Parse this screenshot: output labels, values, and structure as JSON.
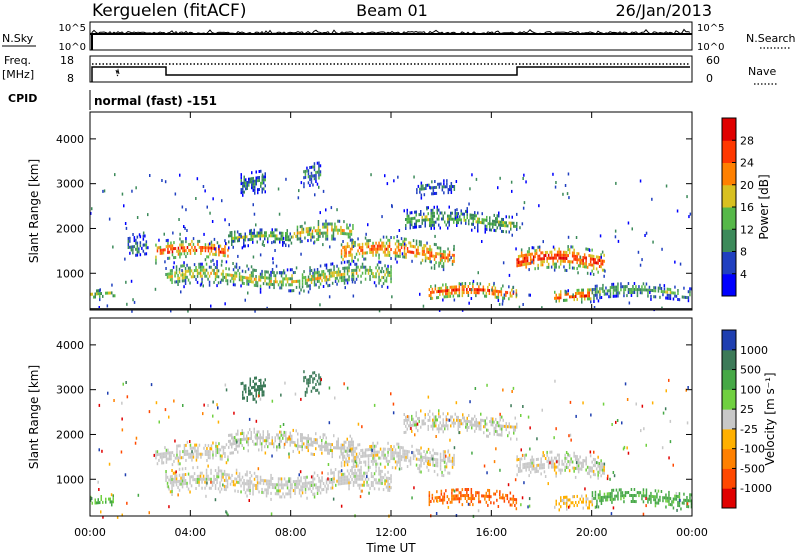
{
  "header": {
    "station": "Kerguelen (fitACF)",
    "beam": "Beam 01",
    "date": "26/Jan/2013"
  },
  "status_panels": {
    "nsky_label": "N.Sky",
    "nsearch_label": "N.Search",
    "nsky_ticks": [
      "10^5",
      "10^0"
    ],
    "nsearch_ticks": [
      "10^5",
      "10^0"
    ],
    "freq_label": "Freq.",
    "freq_unit": "[MHz]",
    "freq_ticks": [
      "18",
      "8"
    ],
    "nave_label": "Nave",
    "nave_ticks": [
      "60",
      "0"
    ],
    "cpid_label": "CPID",
    "cpid_value": "normal (fast) -151"
  },
  "chart_data": [
    {
      "type": "heatmap",
      "name": "power",
      "ylabel": "Slant Range [km]",
      "colorbar_label": "Power [dB]",
      "ylim": [
        180,
        4600
      ],
      "y_ticks": [
        1000,
        2000,
        3000,
        4000
      ],
      "colorbar_ticks": [
        4,
        8,
        12,
        16,
        20,
        24,
        28
      ],
      "colorbar_colors": [
        "#0000ff",
        "#2040c0",
        "#3c8a5a",
        "#56b848",
        "#d8c020",
        "#ff8000",
        "#ff3800",
        "#e00000"
      ],
      "echo_bands": [
        {
          "t_start": 0.0,
          "t_end": 1.0,
          "r_center": 550,
          "width": 120,
          "level": 0.5
        },
        {
          "t_start": 1.5,
          "t_end": 2.3,
          "r_center": 1600,
          "width": 260,
          "level": 0.3
        },
        {
          "t_start": 2.6,
          "t_end": 5.5,
          "r_center": 1500,
          "width": 240,
          "level": 0.85
        },
        {
          "t_start": 3.0,
          "t_end": 12.0,
          "r_center": 950,
          "width": 280,
          "level": 0.55
        },
        {
          "t_start": 5.5,
          "t_end": 8.0,
          "r_center": 1800,
          "width": 200,
          "level": 0.45
        },
        {
          "t_start": 8.0,
          "t_end": 10.5,
          "r_center": 1900,
          "width": 260,
          "level": 0.6
        },
        {
          "t_start": 10.0,
          "t_end": 14.5,
          "r_center": 1500,
          "width": 300,
          "level": 0.8
        },
        {
          "t_start": 12.5,
          "t_end": 17.0,
          "r_center": 2200,
          "width": 240,
          "level": 0.45
        },
        {
          "t_start": 13.5,
          "t_end": 17.0,
          "r_center": 600,
          "width": 200,
          "level": 0.85
        },
        {
          "t_start": 17.0,
          "t_end": 20.5,
          "r_center": 1300,
          "width": 300,
          "level": 0.9
        },
        {
          "t_start": 18.5,
          "t_end": 20.0,
          "r_center": 500,
          "width": 160,
          "level": 0.9
        },
        {
          "t_start": 20.0,
          "t_end": 24.0,
          "r_center": 600,
          "width": 200,
          "level": 0.4
        },
        {
          "t_start": 6.0,
          "t_end": 7.0,
          "r_center": 3000,
          "width": 300,
          "level": 0.3
        },
        {
          "t_start": 8.5,
          "t_end": 9.2,
          "r_center": 3200,
          "width": 300,
          "level": 0.35
        },
        {
          "t_start": 13.0,
          "t_end": 14.5,
          "r_center": 2900,
          "width": 200,
          "level": 0.25
        }
      ]
    },
    {
      "type": "heatmap",
      "name": "velocity",
      "xlabel": "Time UT",
      "ylabel": "Slant Range [km]",
      "colorbar_label": "Velocity [m s⁻¹]",
      "ylim": [
        180,
        4600
      ],
      "y_ticks": [
        1000,
        2000,
        3000,
        4000
      ],
      "x_ticks": [
        "00:00",
        "04:00",
        "08:00",
        "12:00",
        "16:00",
        "20:00",
        "00:00"
      ],
      "xlim_hours": [
        0,
        24
      ],
      "colorbar_ticks": [
        "1000",
        "500",
        "100",
        "25",
        "-25",
        "-100",
        "-500",
        "-1000"
      ],
      "colorbar_colors": [
        "#1f3fb0",
        "#3c7a58",
        "#46a846",
        "#70d040",
        "#c8c8c8",
        "#ffb000",
        "#ff8000",
        "#ff4800",
        "#e00000"
      ],
      "echo_bands": [
        {
          "t_start": 0.0,
          "t_end": 1.0,
          "r_center": 550,
          "width": 120,
          "vel": 100
        },
        {
          "t_start": 2.6,
          "t_end": 5.5,
          "r_center": 1550,
          "width": 240,
          "vel": 0
        },
        {
          "t_start": 3.0,
          "t_end": 12.0,
          "r_center": 950,
          "width": 280,
          "vel": 0
        },
        {
          "t_start": 5.5,
          "t_end": 10.5,
          "r_center": 1850,
          "width": 240,
          "vel": 0
        },
        {
          "t_start": 10.0,
          "t_end": 14.5,
          "r_center": 1500,
          "width": 300,
          "vel": 0
        },
        {
          "t_start": 12.5,
          "t_end": 17.0,
          "r_center": 2250,
          "width": 240,
          "vel": 0
        },
        {
          "t_start": 13.5,
          "t_end": 17.0,
          "r_center": 600,
          "width": 200,
          "vel": -300
        },
        {
          "t_start": 17.0,
          "t_end": 20.5,
          "r_center": 1300,
          "width": 300,
          "vel": 0
        },
        {
          "t_start": 18.5,
          "t_end": 20.0,
          "r_center": 500,
          "width": 160,
          "vel": -40
        },
        {
          "t_start": 20.0,
          "t_end": 24.0,
          "r_center": 600,
          "width": 200,
          "vel": 120
        },
        {
          "t_start": 6.0,
          "t_end": 7.0,
          "r_center": 3000,
          "width": 300,
          "vel": 400
        },
        {
          "t_start": 8.5,
          "t_end": 9.2,
          "r_center": 3200,
          "width": 300,
          "vel": 300
        }
      ]
    }
  ]
}
